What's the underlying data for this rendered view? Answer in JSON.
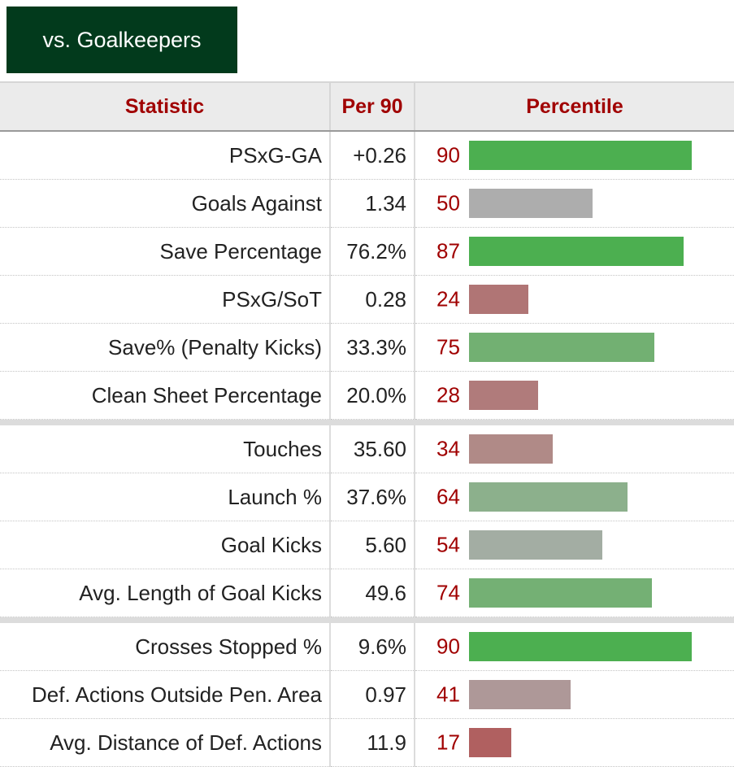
{
  "tab": {
    "label": "vs. Goalkeepers"
  },
  "headers": {
    "statistic": "Statistic",
    "per90": "Per 90",
    "percentile": "Percentile"
  },
  "groups": [
    {
      "rows": [
        {
          "stat": "PSxG-GA",
          "per90": "+0.26",
          "pct": "90",
          "color": "#4caf50"
        },
        {
          "stat": "Goals Against",
          "per90": "1.34",
          "pct": "50",
          "color": "#adadad"
        },
        {
          "stat": "Save Percentage",
          "per90": "76.2%",
          "pct": "87",
          "color": "#4caf50"
        },
        {
          "stat": "PSxG/SoT",
          "per90": "0.28",
          "pct": "24",
          "color": "#b07575"
        },
        {
          "stat": "Save% (Penalty Kicks)",
          "per90": "33.3%",
          "pct": "75",
          "color": "#72b072"
        },
        {
          "stat": "Clean Sheet Percentage",
          "per90": "20.0%",
          "pct": "28",
          "color": "#b07b7b"
        }
      ]
    },
    {
      "rows": [
        {
          "stat": "Touches",
          "per90": "35.60",
          "pct": "34",
          "color": "#b08a87"
        },
        {
          "stat": "Launch %",
          "per90": "37.6%",
          "pct": "64",
          "color": "#8cb08c"
        },
        {
          "stat": "Goal Kicks",
          "per90": "5.60",
          "pct": "54",
          "color": "#a3ada3"
        },
        {
          "stat": "Avg. Length of Goal Kicks",
          "per90": "49.6",
          "pct": "74",
          "color": "#74b074"
        }
      ]
    },
    {
      "rows": [
        {
          "stat": "Crosses Stopped %",
          "per90": "9.6%",
          "pct": "90",
          "color": "#4caf50"
        },
        {
          "stat": "Def. Actions Outside Pen. Area",
          "per90": "0.97",
          "pct": "41",
          "color": "#ae9898"
        },
        {
          "stat": "Avg. Distance of Def. Actions",
          "per90": "11.9",
          "pct": "17",
          "color": "#b06060"
        }
      ]
    }
  ]
}
